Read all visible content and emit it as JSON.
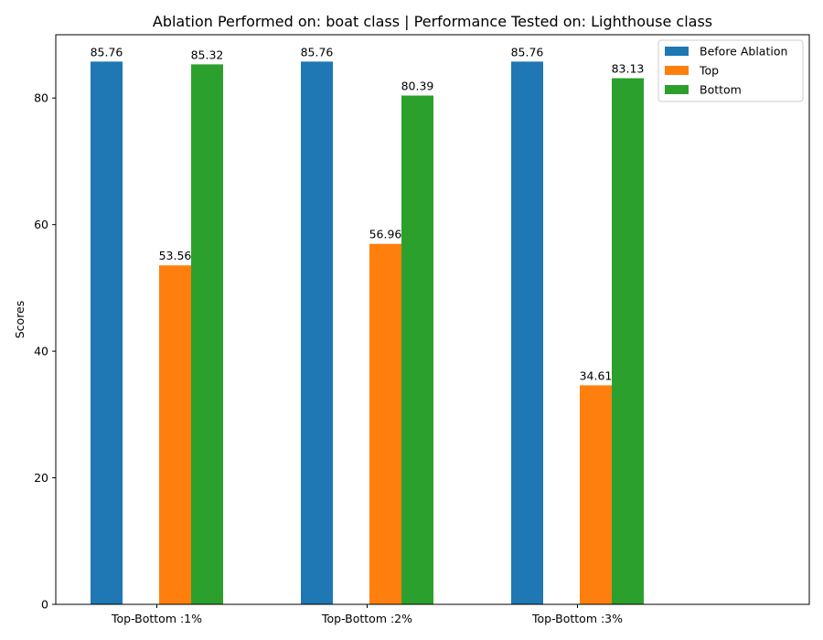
{
  "chart_data": {
    "type": "bar",
    "title": "Ablation Performed on: boat class | Performance Tested on: Lighthouse class",
    "xlabel": "",
    "ylabel": "Scores",
    "categories": [
      "Top-Bottom :1%",
      "Top-Bottom :2%",
      "Top-Bottom :3%"
    ],
    "ylim": [
      0,
      90
    ],
    "yticks": [
      0,
      20,
      40,
      60,
      80
    ],
    "grid": false,
    "legend_position": "top-right",
    "series": [
      {
        "name": "Before Ablation",
        "color": "#1f77b4",
        "values": [
          85.76,
          85.76,
          85.76
        ],
        "labels": [
          "85.76",
          "85.76",
          "85.76"
        ]
      },
      {
        "name": "Top",
        "color": "#ff7f0e",
        "values": [
          53.56,
          56.96,
          34.61
        ],
        "labels": [
          "53.56",
          "56.96",
          "34.61"
        ]
      },
      {
        "name": "Bottom",
        "color": "#2ca02c",
        "values": [
          85.32,
          80.39,
          83.13
        ],
        "labels": [
          "85.32",
          "80.39",
          "83.13"
        ]
      }
    ]
  }
}
